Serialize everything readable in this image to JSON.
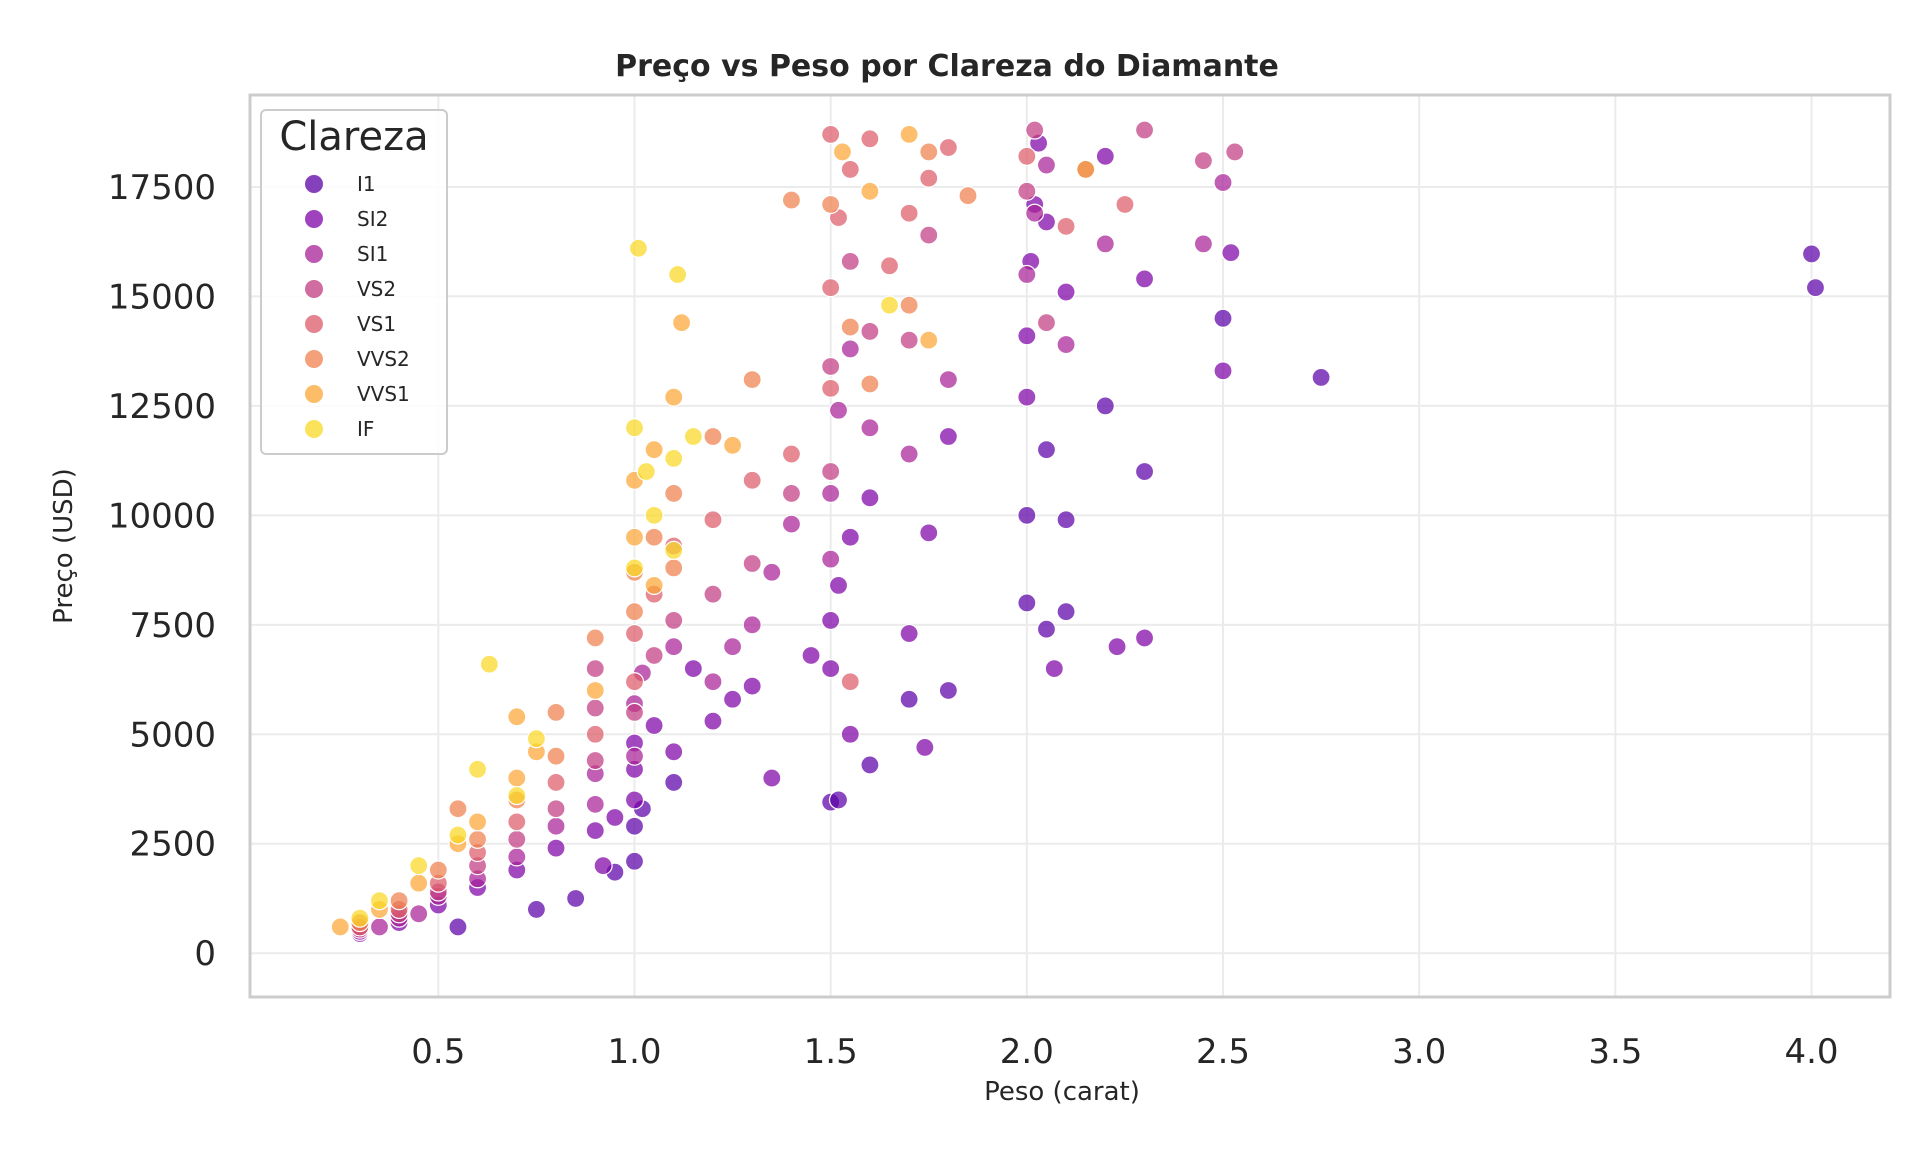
{
  "chart_data": {
    "type": "scatter",
    "title": "Preço vs Peso por Clareza do Diamante",
    "xlabel": "Peso (carat)",
    "ylabel": "Preço (USD)",
    "xlim": [
      0.02,
      4.2
    ],
    "ylim": [
      -1000,
      19600
    ],
    "xticks": [
      0.5,
      1.0,
      1.5,
      2.0,
      2.5,
      3.0,
      3.5,
      4.0
    ],
    "xtick_labels": [
      "0.5",
      "1.0",
      "1.5",
      "2.0",
      "2.5",
      "3.0",
      "3.5",
      "4.0"
    ],
    "yticks": [
      0,
      2500,
      5000,
      7500,
      10000,
      12500,
      15000,
      17500
    ],
    "ytick_labels": [
      "0",
      "2500",
      "5000",
      "7500",
      "10000",
      "12500",
      "15000",
      "17500"
    ],
    "grid": true,
    "legend": {
      "title": "Clareza",
      "position": "top-left"
    },
    "series": [
      {
        "name": "I1",
        "color": "#5c01a6",
        "points": [
          [
            0.85,
            1250
          ],
          [
            1.0,
            2100
          ],
          [
            1.0,
            2900
          ],
          [
            1.02,
            3300
          ],
          [
            1.1,
            3900
          ],
          [
            1.5,
            3450
          ],
          [
            1.52,
            3500
          ],
          [
            1.6,
            4300
          ],
          [
            1.7,
            5800
          ],
          [
            1.8,
            6000
          ],
          [
            2.0,
            8000
          ],
          [
            2.05,
            7400
          ],
          [
            2.1,
            7800
          ],
          [
            2.0,
            10000
          ],
          [
            2.05,
            11500
          ],
          [
            2.1,
            9900
          ],
          [
            2.2,
            12500
          ],
          [
            2.3,
            11000
          ],
          [
            2.5,
            14500
          ],
          [
            2.75,
            13150
          ],
          [
            4.01,
            15200
          ],
          [
            4.0,
            15970
          ],
          [
            0.55,
            600
          ],
          [
            0.75,
            1000
          ],
          [
            0.95,
            1850
          ]
        ]
      },
      {
        "name": "SI2",
        "color": "#7e03a8",
        "points": [
          [
            0.3,
            450
          ],
          [
            0.4,
            700
          ],
          [
            0.5,
            1100
          ],
          [
            0.6,
            1500
          ],
          [
            0.7,
            1900
          ],
          [
            0.8,
            2400
          ],
          [
            0.9,
            2800
          ],
          [
            1.0,
            3500
          ],
          [
            1.0,
            4200
          ],
          [
            1.0,
            4800
          ],
          [
            1.05,
            5200
          ],
          [
            1.1,
            4600
          ],
          [
            1.2,
            5300
          ],
          [
            1.3,
            6100
          ],
          [
            1.5,
            6500
          ],
          [
            1.5,
            7600
          ],
          [
            1.52,
            8400
          ],
          [
            1.55,
            9500
          ],
          [
            1.6,
            10400
          ],
          [
            1.7,
            7300
          ],
          [
            1.75,
            9600
          ],
          [
            1.8,
            11800
          ],
          [
            2.0,
            12700
          ],
          [
            2.0,
            14100
          ],
          [
            2.01,
            15800
          ],
          [
            2.02,
            17100
          ],
          [
            2.03,
            18500
          ],
          [
            2.05,
            16700
          ],
          [
            2.1,
            15100
          ],
          [
            2.2,
            18200
          ],
          [
            2.3,
            15400
          ],
          [
            2.5,
            13300
          ],
          [
            2.52,
            16000
          ],
          [
            1.25,
            5800
          ],
          [
            1.15,
            6500
          ],
          [
            0.95,
            3100
          ],
          [
            1.35,
            4000
          ],
          [
            1.45,
            6800
          ],
          [
            2.07,
            6500
          ],
          [
            2.23,
            7000
          ],
          [
            2.3,
            7200
          ],
          [
            1.74,
            4700
          ],
          [
            1.55,
            5000
          ],
          [
            0.92,
            2000
          ]
        ]
      },
      {
        "name": "SI1",
        "color": "#a72197",
        "points": [
          [
            0.3,
            500
          ],
          [
            0.35,
            600
          ],
          [
            0.4,
            800
          ],
          [
            0.45,
            900
          ],
          [
            0.5,
            1300
          ],
          [
            0.6,
            1700
          ],
          [
            0.7,
            2200
          ],
          [
            0.8,
            2900
          ],
          [
            0.9,
            3400
          ],
          [
            0.9,
            4100
          ],
          [
            1.0,
            4500
          ],
          [
            1.0,
            5700
          ],
          [
            1.02,
            6400
          ],
          [
            1.1,
            7000
          ],
          [
            1.2,
            6200
          ],
          [
            1.3,
            7500
          ],
          [
            1.5,
            9000
          ],
          [
            1.5,
            10500
          ],
          [
            1.52,
            12400
          ],
          [
            1.55,
            13800
          ],
          [
            1.6,
            12000
          ],
          [
            1.7,
            11400
          ],
          [
            1.8,
            13100
          ],
          [
            2.0,
            15500
          ],
          [
            2.02,
            16900
          ],
          [
            2.05,
            18000
          ],
          [
            2.1,
            13900
          ],
          [
            2.2,
            16200
          ],
          [
            2.45,
            16200
          ],
          [
            2.5,
            17600
          ],
          [
            1.35,
            8700
          ],
          [
            1.4,
            9800
          ],
          [
            1.25,
            7000
          ]
        ]
      },
      {
        "name": "VS2",
        "color": "#c13b82",
        "points": [
          [
            0.3,
            550
          ],
          [
            0.4,
            900
          ],
          [
            0.5,
            1400
          ],
          [
            0.6,
            2000
          ],
          [
            0.7,
            2600
          ],
          [
            0.8,
            3300
          ],
          [
            0.9,
            4400
          ],
          [
            0.9,
            5600
          ],
          [
            0.9,
            6500
          ],
          [
            1.0,
            5500
          ],
          [
            1.05,
            6800
          ],
          [
            1.1,
            7600
          ],
          [
            1.2,
            8200
          ],
          [
            1.3,
            8900
          ],
          [
            1.5,
            11000
          ],
          [
            1.5,
            13400
          ],
          [
            1.55,
            15800
          ],
          [
            1.6,
            14200
          ],
          [
            1.7,
            14000
          ],
          [
            1.75,
            16400
          ],
          [
            2.0,
            17400
          ],
          [
            2.02,
            18800
          ],
          [
            2.05,
            14400
          ],
          [
            2.15,
            17900
          ],
          [
            2.3,
            18800
          ],
          [
            2.45,
            18100
          ],
          [
            2.53,
            18300
          ],
          [
            1.4,
            10500
          ]
        ]
      },
      {
        "name": "VS1",
        "color": "#dc5b6a",
        "points": [
          [
            0.3,
            600
          ],
          [
            0.4,
            1000
          ],
          [
            0.5,
            1600
          ],
          [
            0.6,
            2300
          ],
          [
            0.7,
            3000
          ],
          [
            0.8,
            3900
          ],
          [
            0.9,
            5000
          ],
          [
            1.0,
            6200
          ],
          [
            1.0,
            7300
          ],
          [
            1.05,
            8200
          ],
          [
            1.1,
            9300
          ],
          [
            1.2,
            9900
          ],
          [
            1.3,
            10800
          ],
          [
            1.5,
            12900
          ],
          [
            1.5,
            15200
          ],
          [
            1.52,
            16800
          ],
          [
            1.55,
            17900
          ],
          [
            1.6,
            18600
          ],
          [
            1.65,
            15700
          ],
          [
            1.7,
            16900
          ],
          [
            1.75,
            17700
          ],
          [
            1.8,
            18400
          ],
          [
            2.0,
            18200
          ],
          [
            2.1,
            16600
          ],
          [
            2.25,
            17100
          ],
          [
            1.5,
            18700
          ],
          [
            1.55,
            6200
          ],
          [
            1.4,
            11400
          ]
        ]
      },
      {
        "name": "VVS2",
        "color": "#f0804e",
        "points": [
          [
            0.3,
            700
          ],
          [
            0.4,
            1200
          ],
          [
            0.5,
            1900
          ],
          [
            0.55,
            3300
          ],
          [
            0.6,
            2600
          ],
          [
            0.7,
            3500
          ],
          [
            0.8,
            4500
          ],
          [
            0.8,
            5500
          ],
          [
            0.9,
            7200
          ],
          [
            1.0,
            7800
          ],
          [
            1.0,
            8700
          ],
          [
            1.05,
            9500
          ],
          [
            1.1,
            10500
          ],
          [
            1.2,
            11800
          ],
          [
            1.3,
            13100
          ],
          [
            1.4,
            17200
          ],
          [
            1.5,
            17100
          ],
          [
            1.55,
            14300
          ],
          [
            1.6,
            13000
          ],
          [
            1.7,
            14800
          ],
          [
            1.75,
            18300
          ],
          [
            1.85,
            17300
          ],
          [
            1.1,
            8800
          ]
        ]
      },
      {
        "name": "VVS1",
        "color": "#fca636",
        "points": [
          [
            0.25,
            600
          ],
          [
            0.35,
            1000
          ],
          [
            0.45,
            1600
          ],
          [
            0.55,
            2500
          ],
          [
            0.6,
            3000
          ],
          [
            0.7,
            4000
          ],
          [
            0.7,
            5400
          ],
          [
            0.75,
            4600
          ],
          [
            0.9,
            6000
          ],
          [
            1.0,
            9500
          ],
          [
            1.0,
            10800
          ],
          [
            1.05,
            11500
          ],
          [
            1.1,
            12700
          ],
          [
            1.12,
            14400
          ],
          [
            1.25,
            11600
          ],
          [
            1.53,
            18300
          ],
          [
            1.6,
            17400
          ],
          [
            1.7,
            18700
          ],
          [
            1.75,
            14000
          ],
          [
            2.15,
            17900
          ],
          [
            1.05,
            8400
          ]
        ]
      },
      {
        "name": "IF",
        "color": "#f9d824",
        "points": [
          [
            0.3,
            800
          ],
          [
            0.35,
            1200
          ],
          [
            0.45,
            2000
          ],
          [
            0.55,
            2700
          ],
          [
            0.6,
            4200
          ],
          [
            0.63,
            6600
          ],
          [
            0.7,
            3600
          ],
          [
            0.75,
            4900
          ],
          [
            1.0,
            12000
          ],
          [
            1.01,
            16100
          ],
          [
            1.03,
            11000
          ],
          [
            1.05,
            10000
          ],
          [
            1.1,
            11300
          ],
          [
            1.1,
            9200
          ],
          [
            1.11,
            15500
          ],
          [
            1.15,
            11800
          ],
          [
            1.65,
            14800
          ],
          [
            1.0,
            8800
          ]
        ]
      }
    ]
  }
}
